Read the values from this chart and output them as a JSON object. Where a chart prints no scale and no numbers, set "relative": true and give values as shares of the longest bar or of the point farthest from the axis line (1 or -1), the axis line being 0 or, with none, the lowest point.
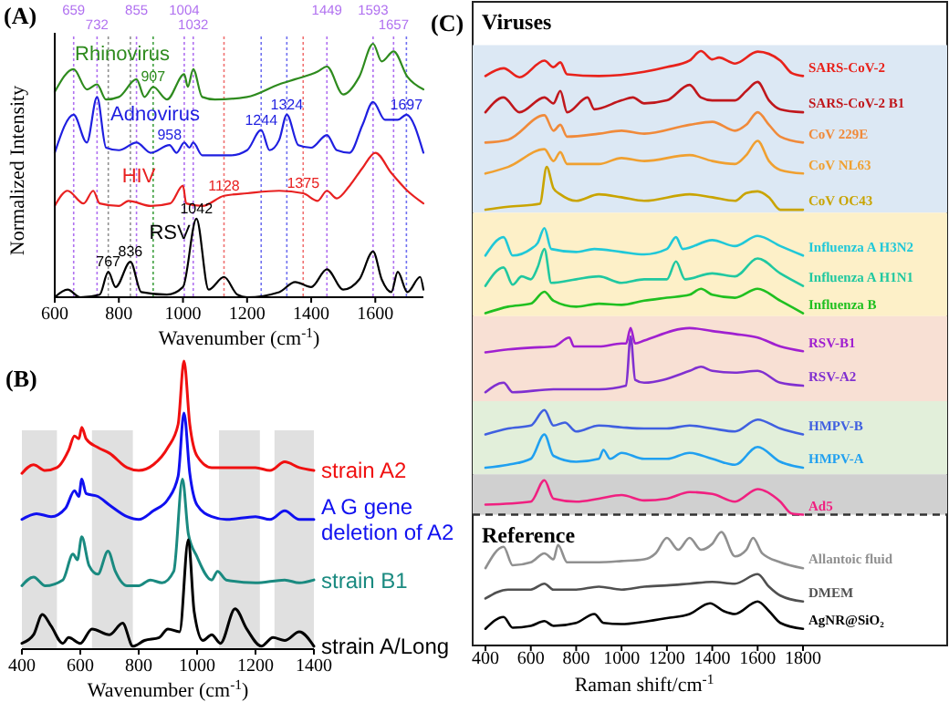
{
  "chart_data": [
    {
      "type": "line",
      "title": "(A)",
      "xlabel": "Wavenumber (cm$^{-1}$)",
      "ylabel": "Normalized Intensity",
      "relative": true,
      "xlim": [
        600,
        1750
      ],
      "xticks": [
        600,
        800,
        1000,
        1200,
        1400,
        1600
      ],
      "series": [
        {
          "name": "Rhinovirus",
          "color": "#2e8b1e",
          "x": [
            600,
            659,
            700,
            732,
            760,
            800,
            855,
            880,
            907,
            950,
            1004,
            1015,
            1032,
            1060,
            1100,
            1200,
            1300,
            1350,
            1420,
            1449,
            1500,
            1550,
            1593,
            1620,
            1657,
            1700,
            1750
          ],
          "values": [
            0.81,
            0.9,
            0.82,
            0.84,
            0.78,
            0.79,
            0.86,
            0.79,
            0.83,
            0.78,
            0.88,
            0.83,
            0.9,
            0.79,
            0.78,
            0.79,
            0.84,
            0.86,
            0.89,
            0.91,
            0.8,
            0.87,
            1.0,
            0.93,
            0.97,
            0.87,
            0.82
          ]
        },
        {
          "name": "Adnovirus",
          "color": "#1f1fe0",
          "x": [
            600,
            659,
            700,
            732,
            760,
            800,
            855,
            900,
            958,
            980,
            1004,
            1020,
            1032,
            1060,
            1150,
            1200,
            1244,
            1270,
            1300,
            1324,
            1360,
            1400,
            1449,
            1480,
            1520,
            1560,
            1593,
            1630,
            1670,
            1697,
            1750
          ],
          "values": [
            0.57,
            0.72,
            0.61,
            0.79,
            0.59,
            0.58,
            0.61,
            0.57,
            0.6,
            0.57,
            0.61,
            0.59,
            0.61,
            0.56,
            0.56,
            0.58,
            0.66,
            0.58,
            0.62,
            0.72,
            0.6,
            0.59,
            0.64,
            0.58,
            0.57,
            0.68,
            0.77,
            0.7,
            0.7,
            0.72,
            0.57
          ]
        },
        {
          "name": "HIV",
          "color": "#e82020",
          "x": [
            600,
            640,
            690,
            720,
            740,
            800,
            830,
            900,
            960,
            1000,
            1010,
            1060,
            1128,
            1200,
            1300,
            1375,
            1420,
            1449,
            1480,
            1520,
            1560,
            1600,
            1650,
            1700,
            1750
          ],
          "values": [
            0.36,
            0.42,
            0.37,
            0.42,
            0.37,
            0.36,
            0.38,
            0.36,
            0.37,
            0.44,
            0.37,
            0.36,
            0.4,
            0.41,
            0.42,
            0.41,
            0.38,
            0.42,
            0.39,
            0.44,
            0.51,
            0.57,
            0.49,
            0.42,
            0.37
          ]
        },
        {
          "name": "RSV",
          "color": "#000000",
          "x": [
            600,
            640,
            680,
            740,
            767,
            790,
            836,
            870,
            950,
            1000,
            1042,
            1080,
            1128,
            1170,
            1200,
            1300,
            1350,
            1400,
            1449,
            1500,
            1550,
            1593,
            1620,
            1650,
            1670,
            1700,
            1740,
            1750
          ],
          "values": [
            0,
            0.03,
            0,
            0.01,
            0.1,
            0.04,
            0.14,
            0.02,
            0.01,
            0.04,
            0.31,
            0.03,
            0.08,
            0.01,
            0,
            0.02,
            0.06,
            0.04,
            0.11,
            0.03,
            0.07,
            0.18,
            0.07,
            0.02,
            0.1,
            0.02,
            0.08,
            0.03
          ]
        }
      ],
      "ref_lines": [
        {
          "axis": "x",
          "value": 659,
          "label": "659",
          "color": "#b070f0",
          "line_style": "dotted"
        },
        {
          "axis": "x",
          "value": 732,
          "label": "732",
          "color": "#b070f0",
          "line_style": "dotted"
        },
        {
          "axis": "x",
          "value": 767,
          "color": "#909090",
          "line_style": "dotted"
        },
        {
          "axis": "x",
          "value": 836,
          "color": "#909090",
          "line_style": "dotted"
        },
        {
          "axis": "x",
          "value": 855,
          "label": "855",
          "color": "#b070f0",
          "line_style": "dotted"
        },
        {
          "axis": "x",
          "value": 907,
          "color": "#40a040",
          "line_style": "dotted"
        },
        {
          "axis": "x",
          "value": 1004,
          "label": "1004",
          "color": "#b070f0",
          "line_style": "dotted"
        },
        {
          "axis": "x",
          "value": 1032,
          "label": "1032",
          "color": "#b070f0",
          "line_style": "dotted"
        },
        {
          "axis": "x",
          "value": 1128,
          "color": "#f07070",
          "line_style": "dotted"
        },
        {
          "axis": "x",
          "value": 1244,
          "color": "#7070f0",
          "line_style": "dotted"
        },
        {
          "axis": "x",
          "value": 1324,
          "color": "#7070f0",
          "line_style": "dotted"
        },
        {
          "axis": "x",
          "value": 1375,
          "color": "#f07070",
          "line_style": "dotted"
        },
        {
          "axis": "x",
          "value": 1449,
          "label": "1449",
          "color": "#b070f0",
          "line_style": "dotted"
        },
        {
          "axis": "x",
          "value": 1593,
          "label": "1593",
          "color": "#b070f0",
          "line_style": "dotted"
        },
        {
          "axis": "x",
          "value": 1657,
          "label": "1657",
          "color": "#b070f0",
          "line_style": "dotted"
        },
        {
          "axis": "x",
          "value": 1697,
          "color": "#7070f0",
          "line_style": "dotted"
        }
      ],
      "annotations": [
        {
          "text": "767",
          "x": 767,
          "y": 0.1
        },
        {
          "text": "836",
          "x": 836,
          "y": 0.14
        },
        {
          "text": "1042",
          "x": 1042,
          "y": 0.31
        },
        {
          "text": "907",
          "x": 907,
          "y": 0.83
        },
        {
          "text": "958",
          "x": 958,
          "y": 0.6
        },
        {
          "text": "1128",
          "x": 1128,
          "y": 0.4
        },
        {
          "text": "1375",
          "x": 1375,
          "y": 0.41
        },
        {
          "text": "1244",
          "x": 1244,
          "y": 0.66
        },
        {
          "text": "1324",
          "x": 1324,
          "y": 0.72
        },
        {
          "text": "1697",
          "x": 1697,
          "y": 0.72
        }
      ]
    },
    {
      "type": "line",
      "title": "(B)",
      "xlabel": "Wavenumber (cm$^{-1}$)",
      "relative": true,
      "xlim": [
        400,
        1400
      ],
      "xticks": [
        400,
        600,
        800,
        1000,
        1200,
        1400
      ],
      "series": [
        {
          "name": "strain A2",
          "color": "#f01010",
          "x": [
            400,
            440,
            480,
            520,
            560,
            580,
            595,
            605,
            620,
            660,
            700,
            760,
            800,
            850,
            900,
            935,
            955,
            975,
            1000,
            1050,
            1100,
            1200,
            1250,
            1300,
            1350,
            1400
          ],
          "values": [
            0.61,
            0.64,
            0.62,
            0.63,
            0.69,
            0.74,
            0.73,
            0.77,
            0.73,
            0.7,
            0.68,
            0.63,
            0.62,
            0.64,
            0.7,
            0.78,
            1.0,
            0.78,
            0.67,
            0.63,
            0.63,
            0.63,
            0.62,
            0.65,
            0.63,
            0.62
          ]
        },
        {
          "name": "A G gene deletion of A2",
          "color": "#1010f0",
          "x": [
            400,
            450,
            500,
            550,
            580,
            595,
            605,
            620,
            660,
            700,
            760,
            800,
            850,
            900,
            935,
            955,
            975,
            1000,
            1050,
            1100,
            1200,
            1250,
            1300,
            1350,
            1400
          ],
          "values": [
            0.45,
            0.47,
            0.46,
            0.49,
            0.55,
            0.53,
            0.59,
            0.54,
            0.53,
            0.5,
            0.46,
            0.45,
            0.48,
            0.52,
            0.6,
            0.82,
            0.61,
            0.5,
            0.46,
            0.45,
            0.46,
            0.45,
            0.48,
            0.45,
            0.45
          ]
        },
        {
          "name": "strain B1",
          "color": "#1a8a80",
          "x": [
            400,
            440,
            480,
            540,
            575,
            590,
            605,
            630,
            660,
            695,
            720,
            760,
            800,
            840,
            880,
            920,
            950,
            970,
            1000,
            1050,
            1070,
            1100,
            1200,
            1300,
            1350,
            1400
          ],
          "values": [
            0.22,
            0.25,
            0.22,
            0.24,
            0.33,
            0.31,
            0.39,
            0.29,
            0.26,
            0.34,
            0.27,
            0.22,
            0.22,
            0.24,
            0.23,
            0.27,
            0.59,
            0.4,
            0.32,
            0.24,
            0.27,
            0.24,
            0.23,
            0.24,
            0.23,
            0.24
          ]
        },
        {
          "name": "strain A/Long",
          "color": "#000000",
          "x": [
            400,
            440,
            470,
            500,
            540,
            560,
            600,
            640,
            700,
            745,
            780,
            820,
            870,
            900,
            940,
            970,
            990,
            1020,
            1050,
            1080,
            1130,
            1170,
            1220,
            1260,
            1300,
            1350,
            1400
          ],
          "values": [
            0.02,
            0.05,
            0.12,
            0.08,
            0.02,
            0.04,
            0.02,
            0.07,
            0.05,
            0.09,
            0.01,
            0.03,
            0.04,
            0.07,
            0.06,
            0.38,
            0.13,
            0.03,
            0.05,
            0.02,
            0.14,
            0.07,
            0.01,
            0.04,
            0.03,
            0.06,
            0.01
          ]
        }
      ],
      "bands": [
        {
          "axis": "x",
          "from": 400,
          "to": 520,
          "color": "#e0e0e0"
        },
        {
          "axis": "x",
          "from": 640,
          "to": 780,
          "color": "#e0e0e0"
        },
        {
          "axis": "x",
          "from": 1075,
          "to": 1215,
          "color": "#e0e0e0"
        },
        {
          "axis": "x",
          "from": 1265,
          "to": 1400,
          "color": "#e0e0e0"
        }
      ]
    },
    {
      "type": "line",
      "title": "(C)",
      "xlabel": "Raman shift/cm$^{-1}$",
      "relative": true,
      "xlim": [
        400,
        1800
      ],
      "xticks": [
        400,
        600,
        800,
        1000,
        1200,
        1400,
        1600,
        1800
      ],
      "series": [
        {
          "name": "SARS-CoV-2",
          "color": "#e8221b",
          "x": [
            400,
            480,
            550,
            660,
            700,
            730,
            760,
            900,
            1100,
            1200,
            1300,
            1350,
            1400,
            1430,
            1500,
            1600,
            1700,
            1750,
            1800
          ],
          "values": [
            0.958,
            0.971,
            0.956,
            0.984,
            0.973,
            0.981,
            0.961,
            0.958,
            0.965,
            0.973,
            0.984,
            1.0,
            0.986,
            0.989,
            0.979,
            0.999,
            0.984,
            0.963,
            0.958
          ]
        },
        {
          "name": "SARS-CoV-2 B1",
          "color": "#c0171c",
          "x": [
            400,
            480,
            550,
            660,
            700,
            730,
            760,
            850,
            880,
            1000,
            1050,
            1100,
            1200,
            1300,
            1350,
            1400,
            1500,
            1550,
            1600,
            1650,
            1700,
            1800
          ],
          "values": [
            0.897,
            0.922,
            0.897,
            0.922,
            0.912,
            0.933,
            0.897,
            0.922,
            0.902,
            0.917,
            0.922,
            0.912,
            0.917,
            0.943,
            0.922,
            0.917,
            0.917,
            0.933,
            0.948,
            0.917,
            0.902,
            0.897
          ]
        },
        {
          "name": "CoV 229E",
          "color": "#f08a3a",
          "x": [
            400,
            500,
            660,
            700,
            730,
            760,
            900,
            1000,
            1100,
            1300,
            1400,
            1500,
            1550,
            1600,
            1650,
            1700,
            1800
          ],
          "values": [
            0.846,
            0.851,
            0.892,
            0.866,
            0.876,
            0.856,
            0.861,
            0.866,
            0.861,
            0.876,
            0.881,
            0.866,
            0.876,
            0.897,
            0.876,
            0.856,
            0.846
          ]
        },
        {
          "name": "CoV NL63",
          "color": "#f0a030",
          "x": [
            400,
            500,
            660,
            700,
            730,
            760,
            900,
            1000,
            1100,
            1300,
            1400,
            1500,
            1550,
            1600,
            1650,
            1700,
            1800
          ],
          "values": [
            0.794,
            0.805,
            0.835,
            0.815,
            0.83,
            0.81,
            0.81,
            0.82,
            0.815,
            0.825,
            0.815,
            0.81,
            0.825,
            0.849,
            0.815,
            0.8,
            0.794
          ]
        },
        {
          "name": "CoV OC43",
          "color": "#c9a400",
          "x": [
            400,
            500,
            640,
            670,
            700,
            730,
            800,
            900,
            1000,
            1100,
            1300,
            1400,
            1500,
            1550,
            1600,
            1650,
            1700,
            1800
          ],
          "values": [
            0.733,
            0.738,
            0.743,
            0.805,
            0.769,
            0.759,
            0.748,
            0.759,
            0.754,
            0.748,
            0.759,
            0.754,
            0.748,
            0.761,
            0.764,
            0.754,
            0.733,
            0.733
          ]
        },
        {
          "name": "Influenza A H3N2",
          "color": "#20c8d8",
          "x": [
            400,
            480,
            520,
            600,
            630,
            660,
            690,
            800,
            880,
            1000,
            1100,
            1200,
            1240,
            1270,
            1400,
            1500,
            1600,
            1700,
            1800
          ],
          "values": [
            0.656,
            0.687,
            0.656,
            0.667,
            0.677,
            0.702,
            0.667,
            0.662,
            0.667,
            0.662,
            0.658,
            0.667,
            0.687,
            0.667,
            0.682,
            0.672,
            0.689,
            0.672,
            0.656
          ]
        },
        {
          "name": "Influenza A H1N1",
          "color": "#20c8a0",
          "x": [
            400,
            480,
            520,
            560,
            600,
            630,
            660,
            690,
            800,
            900,
            1000,
            1100,
            1200,
            1240,
            1280,
            1400,
            1500,
            1600,
            1700,
            1800
          ],
          "values": [
            0.605,
            0.636,
            0.607,
            0.621,
            0.616,
            0.636,
            0.667,
            0.61,
            0.616,
            0.621,
            0.61,
            0.616,
            0.616,
            0.646,
            0.616,
            0.626,
            0.621,
            0.651,
            0.626,
            0.605
          ]
        },
        {
          "name": "Influenza B",
          "color": "#20c020",
          "x": [
            400,
            500,
            600,
            660,
            700,
            800,
            900,
            1000,
            1100,
            1200,
            1300,
            1350,
            1400,
            1500,
            1600,
            1700,
            1800
          ],
          "values": [
            0.559,
            0.57,
            0.575,
            0.595,
            0.58,
            0.57,
            0.575,
            0.573,
            0.58,
            0.585,
            0.59,
            0.6,
            0.59,
            0.585,
            0.6,
            0.58,
            0.559
          ]
        },
        {
          "name": "RSV-B1",
          "color": "#a020d0",
          "x": [
            400,
            500,
            600,
            700,
            770,
            790,
            900,
            1000,
            1020,
            1040,
            1060,
            1100,
            1300,
            1400,
            1500,
            1600,
            1700,
            1800
          ],
          "values": [
            0.493,
            0.498,
            0.501,
            0.503,
            0.518,
            0.503,
            0.503,
            0.508,
            0.508,
            0.534,
            0.508,
            0.513,
            0.534,
            0.529,
            0.524,
            0.518,
            0.503,
            0.495
          ]
        },
        {
          "name": "RSV-A2",
          "color": "#8030d0",
          "x": [
            400,
            480,
            520,
            700,
            900,
            1020,
            1040,
            1060,
            1100,
            1300,
            1350,
            1400,
            1500,
            1600,
            1700,
            1800
          ],
          "values": [
            0.426,
            0.442,
            0.426,
            0.431,
            0.431,
            0.437,
            0.52,
            0.447,
            0.442,
            0.462,
            0.469,
            0.462,
            0.459,
            0.462,
            0.442,
            0.437
          ]
        },
        {
          "name": "HMPV-B",
          "color": "#4060e0",
          "x": [
            400,
            500,
            600,
            660,
            700,
            750,
            800,
            900,
            1000,
            1100,
            1200,
            1300,
            1400,
            1500,
            1600,
            1700,
            1800
          ],
          "values": [
            0.355,
            0.365,
            0.37,
            0.396,
            0.37,
            0.375,
            0.36,
            0.37,
            0.367,
            0.365,
            0.365,
            0.37,
            0.365,
            0.36,
            0.38,
            0.365,
            0.355
          ]
        },
        {
          "name": "HMPV-A",
          "color": "#20a0f0",
          "x": [
            400,
            500,
            600,
            660,
            700,
            800,
            900,
            920,
            950,
            1000,
            1100,
            1200,
            1300,
            1400,
            1500,
            1600,
            1700,
            1800
          ],
          "values": [
            0.299,
            0.304,
            0.314,
            0.355,
            0.319,
            0.309,
            0.314,
            0.329,
            0.314,
            0.324,
            0.314,
            0.314,
            0.324,
            0.314,
            0.304,
            0.334,
            0.309,
            0.299
          ]
        },
        {
          "name": "Ad5",
          "color": "#f02080",
          "x": [
            400,
            600,
            660,
            700,
            800,
            900,
            1000,
            1100,
            1200,
            1300,
            1400,
            1500,
            1600,
            1700,
            1750,
            1800
          ],
          "values": [
            0.237,
            0.242,
            0.278,
            0.247,
            0.242,
            0.247,
            0.253,
            0.244,
            0.247,
            0.258,
            0.255,
            0.242,
            0.263,
            0.242,
            0.222,
            0.22
          ]
        },
        {
          "name": "Allantoic fluid",
          "color": "#909090",
          "x": [
            400,
            480,
            520,
            600,
            660,
            700,
            720,
            760,
            900,
            1000,
            1100,
            1150,
            1200,
            1250,
            1300,
            1350,
            1400,
            1440,
            1500,
            1550,
            1580,
            1620,
            1700,
            1800
          ],
          "values": [
            0.13,
            0.166,
            0.135,
            0.14,
            0.155,
            0.145,
            0.169,
            0.14,
            0.14,
            0.142,
            0.145,
            0.155,
            0.181,
            0.161,
            0.181,
            0.161,
            0.171,
            0.191,
            0.15,
            0.161,
            0.181,
            0.155,
            0.14,
            0.13
          ]
        },
        {
          "name": "DMEM",
          "color": "#505050",
          "x": [
            400,
            500,
            600,
            660,
            700,
            800,
            900,
            1000,
            1100,
            1200,
            1300,
            1400,
            1500,
            1600,
            1650,
            1700,
            1800
          ],
          "values": [
            0.079,
            0.094,
            0.094,
            0.104,
            0.094,
            0.094,
            0.099,
            0.094,
            0.099,
            0.101,
            0.104,
            0.107,
            0.104,
            0.12,
            0.099,
            0.084,
            0.074
          ]
        },
        {
          "name": "AgNR@SiO₂",
          "color": "#000000",
          "x": [
            400,
            480,
            520,
            600,
            660,
            700,
            800,
            880,
            920,
            1000,
            1100,
            1200,
            1300,
            1390,
            1450,
            1500,
            1600,
            1650,
            1700,
            1800
          ],
          "values": [
            0.028,
            0.048,
            0.03,
            0.033,
            0.041,
            0.033,
            0.038,
            0.053,
            0.038,
            0.036,
            0.04,
            0.046,
            0.053,
            0.071,
            0.058,
            0.053,
            0.074,
            0.058,
            0.038,
            0.028
          ]
        }
      ],
      "bands": [
        {
          "axis": "y",
          "from": 0.728,
          "to": 1.01,
          "color": "#dce8f4"
        },
        {
          "axis": "y",
          "from": 0.554,
          "to": 0.728,
          "color": "#fdf0c8"
        },
        {
          "axis": "y",
          "from": 0.411,
          "to": 0.554,
          "color": "#f8e0d4"
        },
        {
          "axis": "y",
          "from": 0.288,
          "to": 0.411,
          "color": "#e2efda"
        },
        {
          "axis": "y",
          "from": 0.22,
          "to": 0.288,
          "color": "#d0d0d0"
        }
      ],
      "ref_lines": [
        {
          "axis": "y",
          "value": 0.22,
          "color": "#333333",
          "line_style": "dashed"
        }
      ],
      "annotations": [
        "Viruses",
        "Reference"
      ]
    }
  ]
}
